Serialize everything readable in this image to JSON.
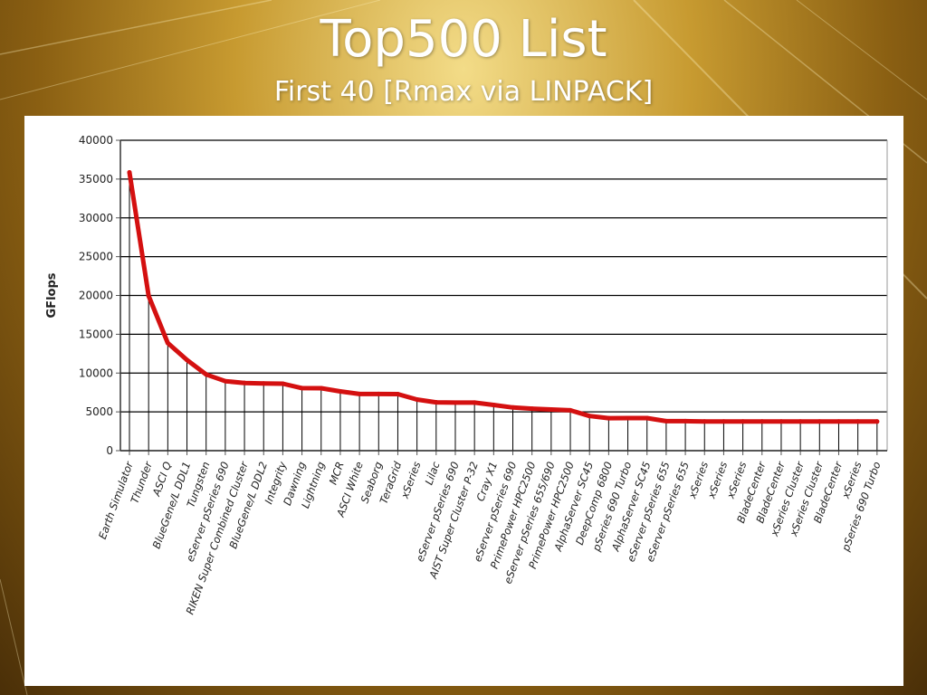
{
  "slide": {
    "title": "Top500 List",
    "subtitle": "First 40 [Rmax via LINPACK]"
  },
  "colors": {
    "line": "#d41010",
    "gridline": "#000000",
    "background_gold": "#c79a30"
  },
  "chart_data": {
    "type": "line",
    "ylabel": "GFlops",
    "xlabel": "",
    "ylim": [
      0,
      40000
    ],
    "yticks": [
      0,
      5000,
      10000,
      15000,
      20000,
      25000,
      30000,
      35000,
      40000
    ],
    "grid": true,
    "legend": "none",
    "categories": [
      "Earth Simulator",
      "Thunder",
      "ASCI Q",
      "BlueGene/L DDL1",
      "Tungsten",
      "eServer pSeries 690",
      "RIKEN Super Combined Cluster",
      "BlueGene/L DDL2",
      "Integrity",
      "Dawning",
      "Lightning",
      "MCR",
      "ASCI White",
      "Seaborg",
      "TeraGrid",
      "xSeries",
      "Lilac",
      "eServer pSeries 690",
      "AIST Super Cluster P-32",
      "Cray X1",
      "eServer pSeries 690",
      "PrimePower HPC2500",
      "eServer pSeries 655/690",
      "PrimePower HPC2500",
      "AlphaServer SC45",
      "DeepComp 6800",
      "pSeries 690 Turbo",
      "AlphaServer SC45",
      "eServer pSeries 655",
      "eServer pSeries 655",
      "xSeries",
      "xSeries",
      "xSeries",
      "BladeCenter",
      "BladeCenter",
      "xSeries Cluster",
      "xSeries Cluster",
      "BladeCenter",
      "xSeries",
      "pSeries 690 Turbo"
    ],
    "series": [
      {
        "values": [
          35860,
          19940,
          13880,
          11680,
          9819,
          8955,
          8728,
          8655,
          8633,
          8061,
          8051,
          7634,
          7304,
          7304,
          7292,
          6586,
          6232,
          6188,
          6189,
          5895,
          5568,
          5406,
          5311,
          5200,
          4463,
          4183,
          4200,
          4200,
          3800,
          3800,
          3755,
          3755,
          3755,
          3755,
          3755,
          3755,
          3755,
          3755,
          3755,
          3755
        ]
      }
    ]
  }
}
